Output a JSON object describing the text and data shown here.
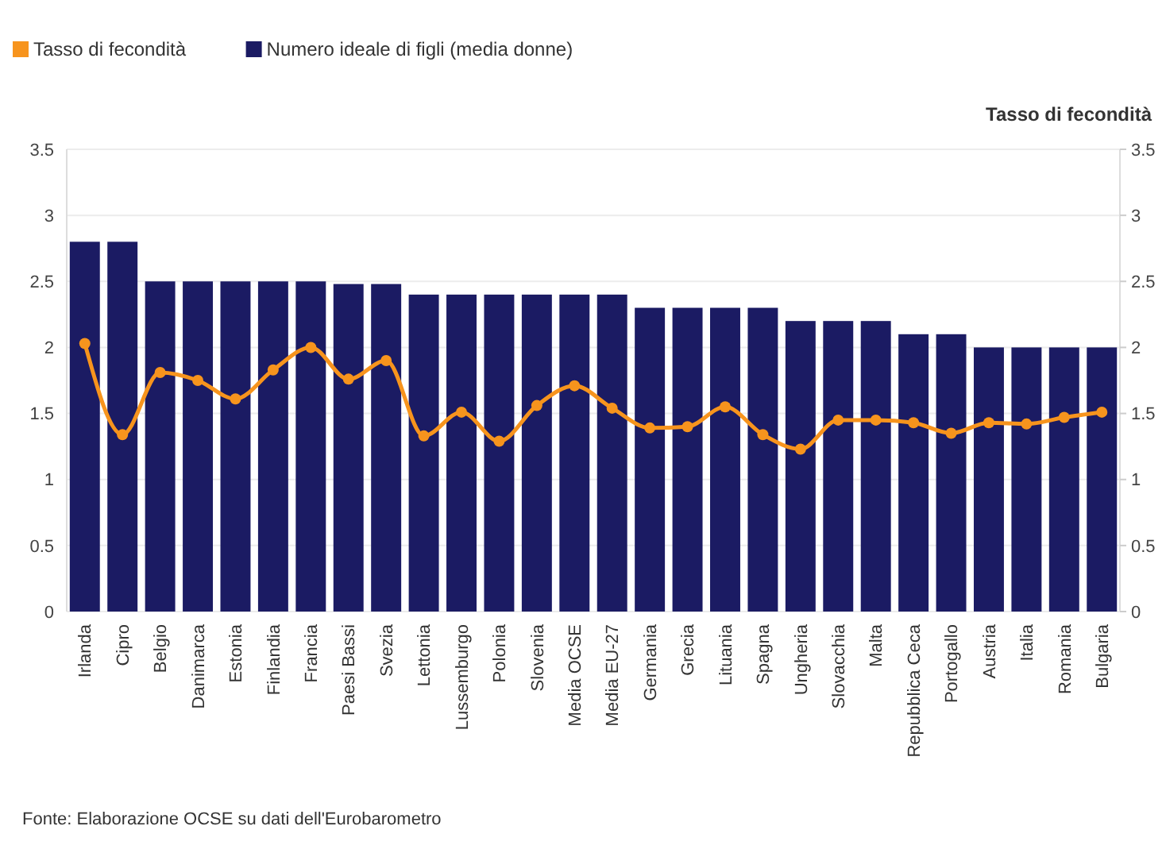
{
  "chart_data": {
    "type": "bar",
    "y2label": "Tasso di fecondità",
    "categories": [
      "Irlanda",
      "Cipro",
      "Belgio",
      "Danimarca",
      "Estonia",
      "Finlandia",
      "Francia",
      "Paesi Bassi",
      "Svezia",
      "Lettonia",
      "Lussemburgo",
      "Polonia",
      "Slovenia",
      "Media OCSE",
      "Media EU-27",
      "Germania",
      "Grecia",
      "Lituania",
      "Spagna",
      "Ungheria",
      "Slovacchia",
      "Malta",
      "Repubblica Ceca",
      "Portogallo",
      "Austria",
      "Italia",
      "Romania",
      "Bulgaria"
    ],
    "series": [
      {
        "name": "Tasso di fecondità",
        "type": "line",
        "axis": "y2",
        "color": "#f7941d",
        "marker": "circle",
        "line_style": "solid",
        "values": [
          2.03,
          1.34,
          1.81,
          1.75,
          1.61,
          1.83,
          2.0,
          1.76,
          1.9,
          1.33,
          1.51,
          1.29,
          1.56,
          1.71,
          1.54,
          1.39,
          1.4,
          1.55,
          1.34,
          1.23,
          1.45,
          1.45,
          1.43,
          1.35,
          1.43,
          1.42,
          1.47,
          1.51
        ]
      },
      {
        "name": "Numero ideale di figli (media donne)",
        "color": "#1b1b63",
        "values": [
          2.8,
          2.8,
          2.5,
          2.5,
          2.5,
          2.5,
          2.5,
          2.48,
          2.48,
          2.4,
          2.4,
          2.4,
          2.4,
          2.4,
          2.4,
          2.3,
          2.3,
          2.3,
          2.3,
          2.2,
          2.2,
          2.2,
          2.1,
          2.1,
          2.0,
          2.0,
          2.0,
          2.0
        ]
      }
    ],
    "ylim": [
      0,
      3.5
    ],
    "yticks": [
      0,
      0.5,
      1,
      1.5,
      2,
      2.5,
      3,
      3.5
    ],
    "y2lim": [
      0,
      3.5
    ],
    "y2ticks": [
      0,
      0.5,
      1,
      1.5,
      2,
      2.5,
      3,
      3.5
    ],
    "grid": "y",
    "legend": "top left",
    "annotations": [
      "Fonte: Elaborazione OCSE su dati dell'Eurobarometro"
    ]
  }
}
